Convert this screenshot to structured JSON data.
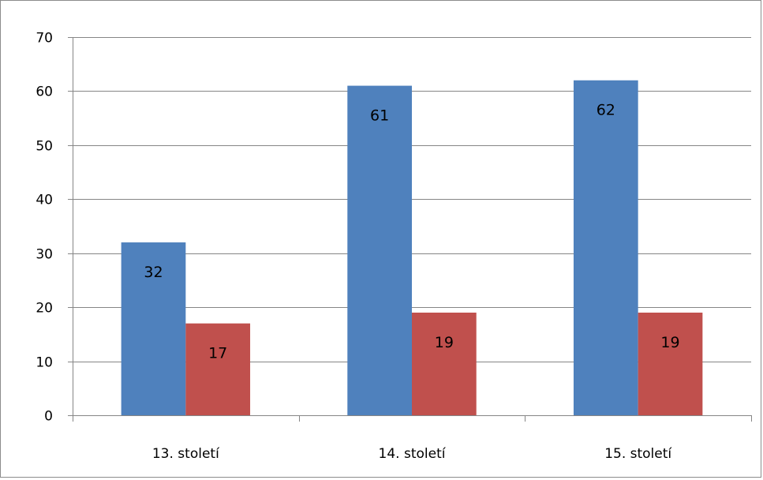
{
  "chart_data": {
    "type": "bar",
    "title": "",
    "xlabel": "",
    "ylabel": "",
    "categories": [
      "13. století",
      "14. století",
      "15. století"
    ],
    "series": [
      {
        "values": [
          32,
          61,
          62
        ],
        "color": "#4f81bd"
      },
      {
        "values": [
          17,
          19,
          19
        ],
        "color": "#c0504d"
      }
    ],
    "ylim": [
      0,
      70
    ],
    "yticks": [
      "0",
      "10",
      "20",
      "30",
      "40",
      "50",
      "60",
      "70"
    ],
    "grid": true,
    "legend": "none",
    "data_labels": true
  }
}
